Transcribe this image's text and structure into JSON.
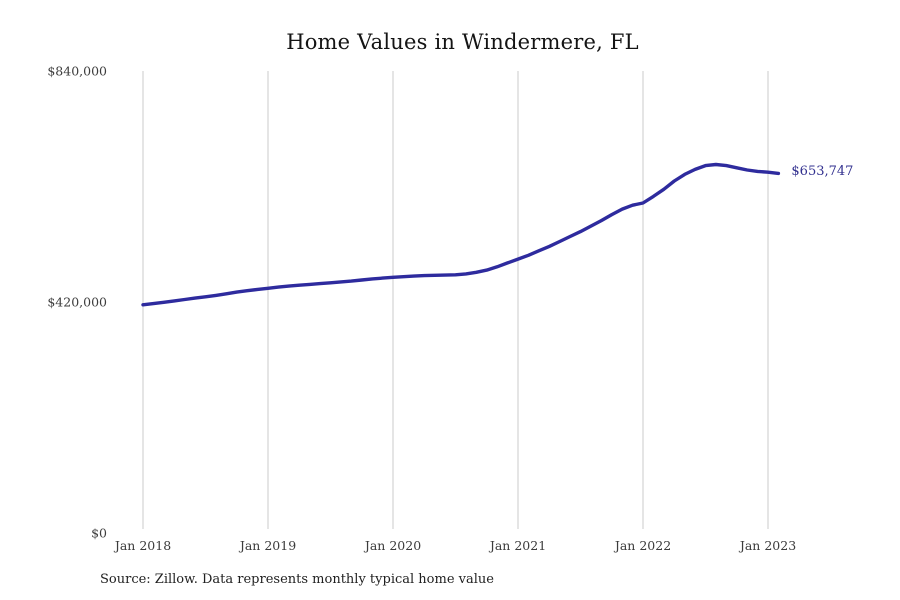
{
  "chart": {
    "title": "Home Values in Windermere, FL",
    "source": "Source: Zillow. Data represents monthly typical home value",
    "end_label": "$653,747",
    "line_color": "#2e2b9e",
    "end_label_color": "#32308f",
    "grid_color": "#cbcbcb",
    "tick_color": "#3c3c3c"
  },
  "chart_data": {
    "type": "line",
    "title": "Home Values in Windermere, FL",
    "xlabel": "",
    "ylabel": "",
    "ylim": [
      0,
      840000
    ],
    "grid": "vertical-only",
    "legend": "none",
    "x_ticks": [
      "Jan 2018",
      "Jan 2019",
      "Jan 2020",
      "Jan 2021",
      "Jan 2022",
      "Jan 2023"
    ],
    "y_ticks": [
      {
        "label": "$840,000",
        "value": 840000
      },
      {
        "label": "$420,000",
        "value": 420000
      },
      {
        "label": "$0",
        "value": 0
      }
    ],
    "annotation": {
      "text": "$653,747",
      "at": "2023-02"
    },
    "series": [
      {
        "name": "Monthly typical home value",
        "x": [
          "2018-01",
          "2018-02",
          "2018-03",
          "2018-04",
          "2018-05",
          "2018-06",
          "2018-07",
          "2018-08",
          "2018-09",
          "2018-10",
          "2018-11",
          "2018-12",
          "2019-01",
          "2019-02",
          "2019-03",
          "2019-04",
          "2019-05",
          "2019-06",
          "2019-07",
          "2019-08",
          "2019-09",
          "2019-10",
          "2019-11",
          "2019-12",
          "2020-01",
          "2020-02",
          "2020-03",
          "2020-04",
          "2020-05",
          "2020-06",
          "2020-07",
          "2020-08",
          "2020-09",
          "2020-10",
          "2020-11",
          "2020-12",
          "2021-01",
          "2021-02",
          "2021-03",
          "2021-04",
          "2021-05",
          "2021-06",
          "2021-07",
          "2021-08",
          "2021-09",
          "2021-10",
          "2021-11",
          "2021-12",
          "2022-01",
          "2022-02",
          "2022-03",
          "2022-04",
          "2022-05",
          "2022-06",
          "2022-07",
          "2022-08",
          "2022-09",
          "2022-10",
          "2022-11",
          "2022-12",
          "2023-01",
          "2023-02"
        ],
        "values": [
          415000,
          417000,
          419500,
          422000,
          424500,
          427000,
          429500,
          432000,
          435000,
          438000,
          440500,
          443000,
          445000,
          447000,
          449000,
          450500,
          452000,
          453500,
          455000,
          456500,
          458000,
          460000,
          462000,
          463500,
          465000,
          466000,
          467000,
          468000,
          468500,
          469000,
          469500,
          471000,
          474000,
          478000,
          484000,
          491000,
          498000,
          505000,
          513000,
          521000,
          530000,
          539000,
          548000,
          558000,
          568000,
          579000,
          589000,
          596000,
          600000,
          612000,
          625000,
          640000,
          652000,
          661000,
          668000,
          670000,
          668000,
          664000,
          660000,
          657500,
          656000,
          653747
        ]
      }
    ]
  }
}
